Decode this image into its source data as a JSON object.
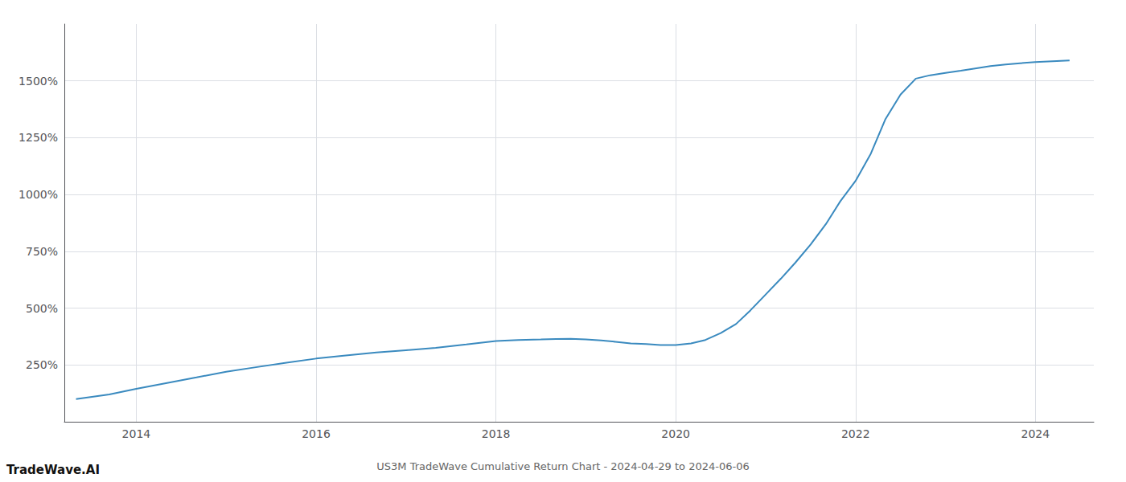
{
  "chart_data": {
    "type": "line",
    "title": "US3M TradeWave Cumulative Return Chart - 2024-04-29 to 2024-06-06",
    "annotations": [
      "TradeWave.AI"
    ],
    "x": [
      2013.33,
      2013.7,
      2014.0,
      2014.33,
      2014.67,
      2015.0,
      2015.33,
      2015.67,
      2016.0,
      2016.33,
      2016.67,
      2017.0,
      2017.33,
      2017.67,
      2018.0,
      2018.25,
      2018.5,
      2018.67,
      2018.83,
      2019.0,
      2019.17,
      2019.33,
      2019.5,
      2019.67,
      2019.83,
      2020.0,
      2020.17,
      2020.33,
      2020.5,
      2020.67,
      2020.83,
      2021.0,
      2021.17,
      2021.33,
      2021.5,
      2021.67,
      2021.83,
      2022.0,
      2022.17,
      2022.33,
      2022.5,
      2022.67,
      2022.83,
      2023.0,
      2023.17,
      2023.33,
      2023.5,
      2023.67,
      2023.83,
      2024.0,
      2024.38
    ],
    "values": [
      100,
      120,
      145,
      170,
      195,
      220,
      240,
      260,
      278,
      292,
      305,
      315,
      325,
      340,
      355,
      360,
      362,
      364,
      365,
      362,
      358,
      352,
      345,
      342,
      338,
      338,
      345,
      360,
      390,
      430,
      490,
      560,
      630,
      700,
      780,
      870,
      970,
      1060,
      1180,
      1330,
      1440,
      1510,
      1525,
      1535,
      1545,
      1555,
      1565,
      1572,
      1578,
      1583,
      1590
    ],
    "color": "#3a8abf",
    "xlim": [
      2013.2,
      2024.65
    ],
    "xticks": [
      2014,
      2016,
      2018,
      2020,
      2022,
      2024
    ],
    "ylim": [
      0,
      1750
    ],
    "yticks": [
      {
        "value": 250,
        "label": "250%"
      },
      {
        "value": 500,
        "label": "500%"
      },
      {
        "value": 750,
        "label": "750%"
      },
      {
        "value": 1000,
        "label": "1000%"
      },
      {
        "value": 1250,
        "label": "1250%"
      },
      {
        "value": 1500,
        "label": "1500%"
      }
    ],
    "grid": true
  }
}
